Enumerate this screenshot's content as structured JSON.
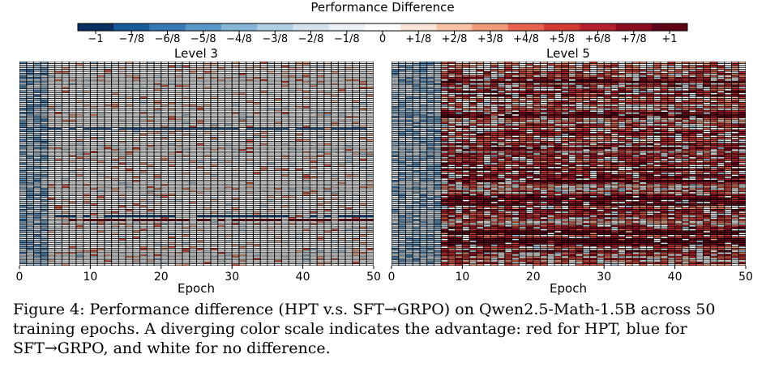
{
  "chart_data": {
    "type": "heatmap",
    "colorbar": {
      "title": "Performance Difference",
      "tick_labels": [
        "−1",
        "−7/8",
        "−6/8",
        "−5/8",
        "−4/8",
        "−3/8",
        "−2/8",
        "−1/8",
        "0",
        "+1/8",
        "+2/8",
        "+3/8",
        "+4/8",
        "+5/8",
        "+6/8",
        "+7/8",
        "+1"
      ],
      "colors": [
        "#0b2f61",
        "#1a5a99",
        "#3a78b5",
        "#5a97c9",
        "#85b6d8",
        "#b0cfe4",
        "#d2e3ef",
        "#eaf1f6",
        "#ffffff",
        "#fbe4d8",
        "#f8c2a6",
        "#f19a7a",
        "#e5624c",
        "#cf3a33",
        "#b61f2c",
        "#8e0c1f",
        "#5e0517"
      ],
      "range": [
        -1,
        1
      ]
    },
    "panels": [
      {
        "title": "Level 3",
        "xlabel": "Epoch",
        "x_ticks": [
          "0",
          "10",
          "20",
          "30",
          "40",
          "50"
        ],
        "x_range": [
          0,
          50
        ],
        "n_cols": 50,
        "n_rows": 105,
        "pattern": "mostly zero (white); blue in the first ~5 epochs; sparse light red cells later; a few dark horizontal streaks"
      },
      {
        "title": "Level 5",
        "xlabel": "Epoch",
        "x_ticks": [
          "0",
          "10",
          "20",
          "30",
          "40",
          "50"
        ],
        "x_range": [
          0,
          50
        ],
        "n_cols": 50,
        "n_rows": 105,
        "pattern": "blue in the first ~8 epochs; dense red (HPT advantage) in later epochs with many dark red streaks"
      }
    ]
  },
  "caption": "Figure 4: Performance difference (HPT v.s. SFT→GRPO) on Qwen2.5-Math-1.5B across 50 training epochs. A diverging color scale indicates the advantage: red for HPT, blue for SFT→GRPO, and white for no difference."
}
